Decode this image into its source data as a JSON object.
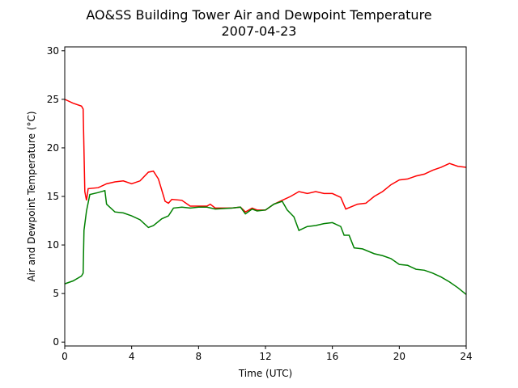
{
  "chart_data": {
    "type": "line",
    "title": "AO&SS Building Tower Air and Dewpoint Temperature",
    "subtitle": "2007-04-23",
    "x_label": "Time (UTC)",
    "y_label": "Air and Dewpoint Temperature (°C)",
    "xlim": [
      0,
      24
    ],
    "xticks": [
      0,
      4,
      8,
      12,
      16,
      20,
      24
    ],
    "ylim": [
      -0.4,
      30.4
    ],
    "yticks": [
      0,
      5,
      10,
      15,
      20,
      25,
      30
    ],
    "grid": false,
    "series": [
      {
        "color": "#ff0000",
        "x": [
          0,
          0.5,
          1.0,
          1.1,
          1.2,
          1.3,
          1.4,
          2.0,
          2.5,
          3.0,
          3.5,
          4.0,
          4.5,
          5.0,
          5.3,
          5.6,
          6.0,
          6.2,
          6.4,
          7.0,
          7.5,
          8.0,
          8.5,
          8.7,
          9.0,
          10.0,
          10.5,
          10.8,
          11.2,
          11.5,
          12.0,
          12.5,
          13.0,
          13.5,
          14.0,
          14.5,
          15.0,
          15.5,
          16.0,
          16.5,
          16.8,
          17.5,
          18.0,
          18.5,
          19.0,
          19.5,
          20.0,
          20.5,
          21.0,
          21.5,
          22.0,
          22.5,
          23.0,
          23.5,
          24.0
        ],
        "values": [
          25.0,
          24.6,
          24.3,
          24.0,
          15.5,
          14.6,
          15.8,
          15.9,
          16.3,
          16.5,
          16.6,
          16.3,
          16.6,
          17.5,
          17.6,
          16.8,
          14.5,
          14.3,
          14.7,
          14.6,
          14.0,
          14.0,
          14.0,
          14.2,
          13.8,
          13.8,
          13.9,
          13.4,
          13.8,
          13.6,
          13.6,
          14.2,
          14.6,
          15.0,
          15.5,
          15.3,
          15.5,
          15.3,
          15.3,
          14.9,
          13.7,
          14.2,
          14.3,
          15.0,
          15.5,
          16.2,
          16.7,
          16.8,
          17.1,
          17.3,
          17.7,
          18.0,
          18.4,
          18.1,
          18.0
        ]
      },
      {
        "color": "#008000",
        "x": [
          0,
          0.5,
          1.0,
          1.1,
          1.15,
          1.3,
          1.5,
          2.0,
          2.4,
          2.5,
          3.0,
          3.5,
          4.0,
          4.5,
          5.0,
          5.3,
          5.8,
          6.2,
          6.5,
          7.0,
          7.5,
          8.0,
          8.5,
          9.0,
          10.0,
          10.5,
          10.8,
          11.2,
          11.5,
          12.0,
          12.5,
          13.0,
          13.3,
          13.7,
          14.0,
          14.5,
          15.0,
          15.5,
          16.0,
          16.5,
          16.7,
          17.0,
          17.3,
          17.8,
          18.5,
          19.0,
          19.5,
          20.0,
          20.5,
          21.0,
          21.5,
          22.0,
          22.5,
          23.0,
          23.5,
          24.0
        ],
        "values": [
          6.0,
          6.3,
          6.8,
          7.1,
          11.5,
          13.5,
          15.2,
          15.4,
          15.6,
          14.2,
          13.4,
          13.3,
          13.0,
          12.6,
          11.8,
          12.0,
          12.7,
          13.0,
          13.8,
          13.9,
          13.8,
          13.9,
          13.9,
          13.7,
          13.8,
          13.9,
          13.2,
          13.7,
          13.5,
          13.6,
          14.2,
          14.5,
          13.6,
          12.9,
          11.5,
          11.9,
          12.0,
          12.2,
          12.3,
          11.9,
          11.0,
          11.0,
          9.7,
          9.6,
          9.1,
          8.9,
          8.6,
          8.0,
          7.9,
          7.5,
          7.4,
          7.1,
          6.7,
          6.2,
          5.6,
          4.9
        ]
      }
    ]
  }
}
